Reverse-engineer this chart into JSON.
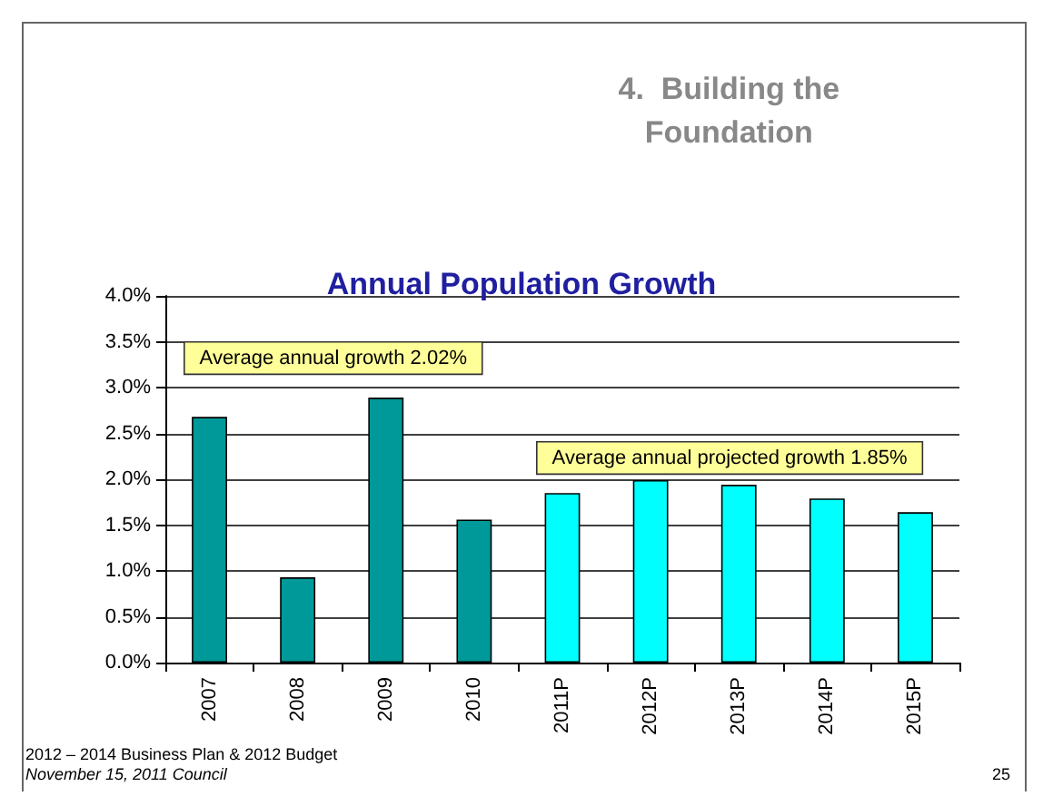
{
  "chart_data": {
    "type": "bar",
    "title": "Annual Population Growth",
    "subtitle": "4.  Building the Foundation",
    "categories": [
      "2007",
      "2008",
      "2009",
      "2010",
      "2011P",
      "2012P",
      "2013P",
      "2014P",
      "2015P"
    ],
    "values": [
      2.68,
      0.93,
      2.89,
      1.56,
      1.85,
      1.99,
      1.94,
      1.79,
      1.64
    ],
    "colors": [
      "#009999",
      "#009999",
      "#009999",
      "#009999",
      "#00ffff",
      "#00ffff",
      "#00ffff",
      "#00ffff",
      "#00ffff"
    ],
    "ylim": [
      0,
      4
    ],
    "yticks": [
      {
        "value": 0,
        "label": "0.0%"
      },
      {
        "value": 0.5,
        "label": "0.5%"
      },
      {
        "value": 1,
        "label": "1.0%"
      },
      {
        "value": 1.5,
        "label": "1.5%"
      },
      {
        "value": 2,
        "label": "2.0%"
      },
      {
        "value": 2.5,
        "label": "2.5%"
      },
      {
        "value": 3,
        "label": "3.0%"
      },
      {
        "value": 3.5,
        "label": "3.5%"
      },
      {
        "value": 4,
        "label": "4.0%"
      }
    ],
    "grid": "y",
    "annotations": [
      "Average annual growth 2.02%",
      "Average annual projected growth 1.85%",
      "2012 – 2014 Business Plan & 2012 Budget",
      "November 15, 2011 Council",
      "25"
    ]
  }
}
